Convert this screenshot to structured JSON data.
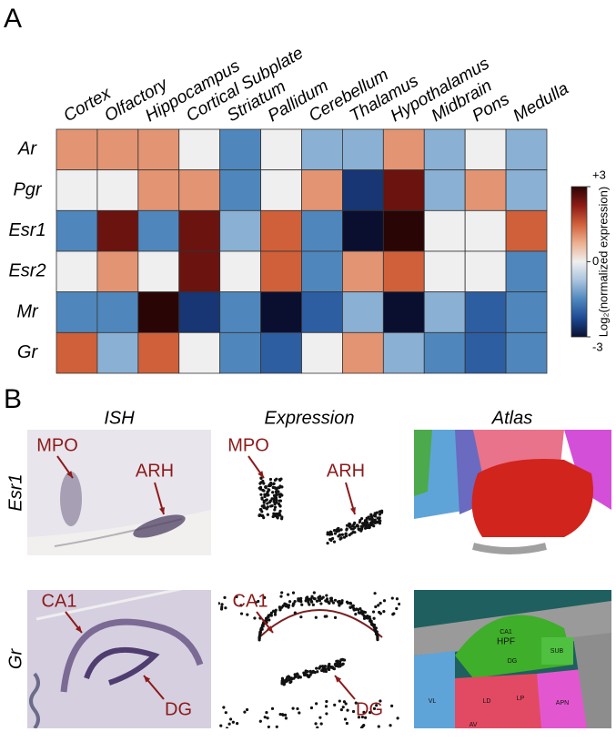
{
  "chart_data": {
    "type": "heatmap",
    "panel_label": "A",
    "categories": [
      "Cortex",
      "Olfactory",
      "Hippocampus",
      "Cortical Subplate",
      "Striatum",
      "Pallidum",
      "Cerebellum",
      "Thalamus",
      "Hypothalamus",
      "Midbrain",
      "Pons",
      "Medulla"
    ],
    "rows": [
      "Ar",
      "Pgr",
      "Esr1",
      "Esr2",
      "Mr",
      "Gr"
    ],
    "values": [
      [
        1,
        1,
        1,
        0,
        -1.5,
        0,
        -1,
        -1,
        1,
        -1,
        0,
        -1
      ],
      [
        0,
        0,
        1,
        1,
        -1.5,
        0,
        1,
        -2.5,
        2.5,
        -1,
        1,
        -1
      ],
      [
        -1.5,
        2.5,
        -1.5,
        2.5,
        -1,
        1.5,
        -1.5,
        -3,
        3,
        0,
        0,
        1.5
      ],
      [
        0,
        1,
        0,
        2.5,
        0,
        1.5,
        -1.5,
        1,
        1.5,
        0,
        0,
        -1.5
      ],
      [
        -1.5,
        -1.5,
        3,
        -2.5,
        -1.5,
        -3,
        -2,
        -1,
        -3,
        -1,
        -2,
        -1.5
      ],
      [
        1.5,
        -1,
        1.5,
        0,
        -1.5,
        -2,
        0,
        1,
        -1,
        -1.5,
        -2,
        -1.5
      ]
    ],
    "colors": [
      "#0a0f30",
      "#1d4a94",
      "#4f87bd",
      "#a8c4de",
      "#efefef",
      "#ecb08f",
      "#d0603a",
      "#8c1a14",
      "#2a0505"
    ],
    "zlim": [
      -3,
      3
    ],
    "zticks": [
      {
        "value": 3,
        "label": "+3"
      },
      0,
      -3
    ],
    "colorbar_label": "Log₂(normalized expression)"
  },
  "panel_b": {
    "label": "B",
    "columns": [
      "ISH",
      "Expression",
      "Atlas"
    ],
    "rows": [
      "Esr1",
      "Gr"
    ],
    "annotations": [
      "MPO",
      "ARH",
      "CA1",
      "DG"
    ],
    "atlas_labels": [
      "HPF",
      "CA1",
      "DG",
      "SUB",
      "LD",
      "LP",
      "APN",
      "VL",
      "AV"
    ]
  }
}
